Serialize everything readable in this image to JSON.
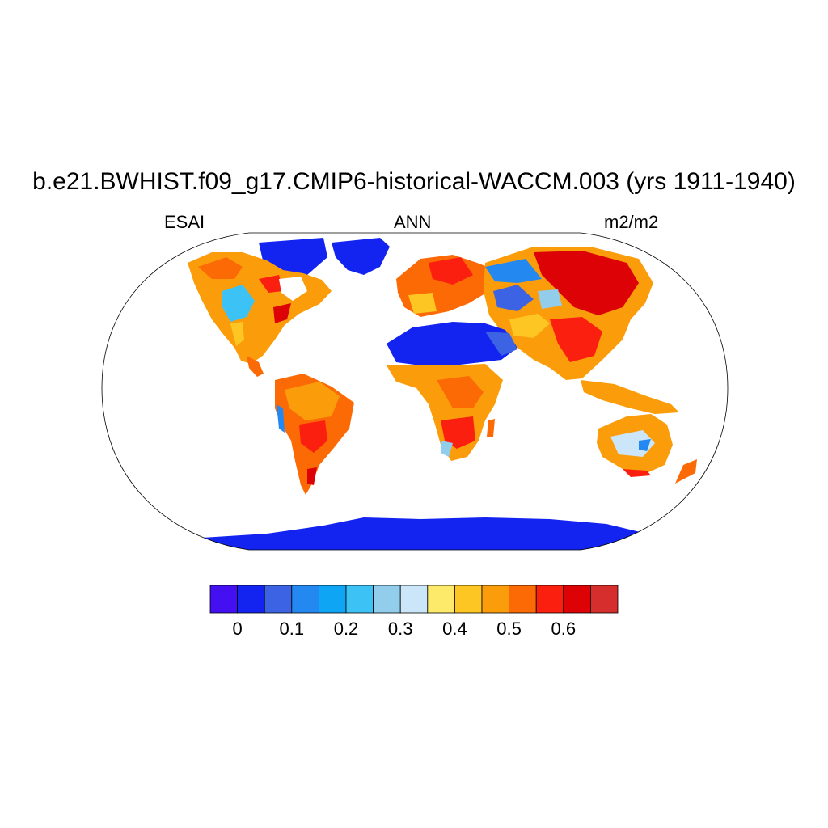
{
  "title": "b.e21.BWHIST.f09_g17.CMIP6-historical-WACCM.003 (yrs 1911-1940)",
  "subtitle_left": "ESAI",
  "subtitle_center": "ANN",
  "subtitle_right": "m2/m2",
  "colorbar": {
    "colors": [
      "#4410f2",
      "#1424f0",
      "#3b63e3",
      "#2488f1",
      "#0ea5f4",
      "#3cc2f4",
      "#92cdec",
      "#cae6f8",
      "#fde96a",
      "#fdc623",
      "#fb9d0b",
      "#fc6a06",
      "#fb1f0f",
      "#dc0205",
      "#d62e2c"
    ],
    "tick_labels": [
      "0",
      "0.1",
      "0.2",
      "0.3",
      "0.4",
      "0.5",
      "0.6"
    ]
  },
  "chart_data": {
    "type": "heatmap",
    "title": "b.e21.BWHIST.f09_g17.CMIP6-historical-WACCM.003 (yrs 1911-1940)",
    "variable": "ESAI",
    "season": "ANN",
    "units": "m2/m2",
    "projection": "Robinson",
    "colorbar_ticks": [
      0,
      0.1,
      0.2,
      0.3,
      0.4,
      0.5,
      0.6
    ]
  }
}
